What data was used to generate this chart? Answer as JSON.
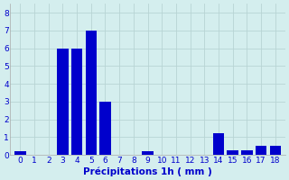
{
  "categories": [
    0,
    1,
    2,
    3,
    4,
    5,
    6,
    7,
    8,
    9,
    10,
    11,
    12,
    13,
    14,
    15,
    16,
    17,
    18
  ],
  "values": [
    0.2,
    0,
    0,
    6,
    6,
    7,
    3,
    0,
    0,
    0.2,
    0,
    0,
    0,
    0,
    1.2,
    0.25,
    0.25,
    0.5,
    0.5
  ],
  "bar_color": "#0000cc",
  "bg_color": "#d4eeee",
  "grid_color": "#b8d4d4",
  "xlabel": "Précipitations 1h ( mm )",
  "ylim": [
    0,
    8.5
  ],
  "yticks": [
    0,
    1,
    2,
    3,
    4,
    5,
    6,
    7,
    8
  ],
  "tick_color": "#0000cc",
  "label_color": "#0000cc",
  "xlabel_fontsize": 7.5,
  "tick_fontsize": 6.5,
  "bar_width": 0.8
}
